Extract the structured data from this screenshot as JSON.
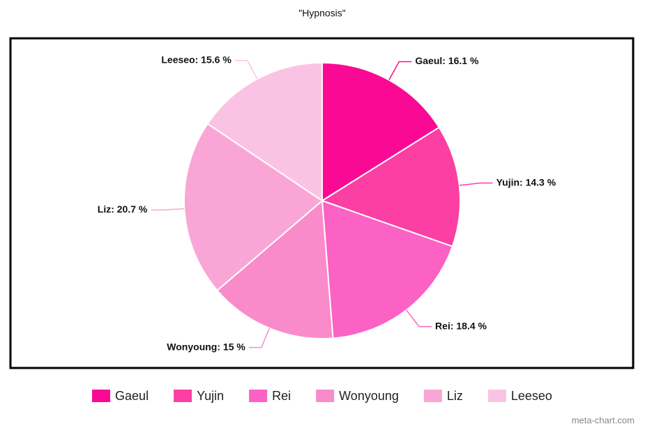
{
  "chart_data": {
    "type": "pie",
    "title": "\"Hypnosis\"",
    "categories": [
      "Gaeul",
      "Yujin",
      "Rei",
      "Wonyoung",
      "Liz",
      "Leeseo"
    ],
    "values": [
      16.1,
      14.3,
      18.4,
      15,
      20.7,
      15.6
    ],
    "value_labels": [
      "Gaeul: 16.1 %",
      "Yujin: 14.3 %",
      "Rei: 18.4 %",
      "Wonyoung: 15 %",
      "Liz: 20.7 %",
      "Leeseo: 15.6 %"
    ],
    "colors": [
      "#fa0a94",
      "#fb3fa3",
      "#fb62c4",
      "#f98bcb",
      "#f9a6d6",
      "#fbc3e3"
    ],
    "legend": "bottom",
    "watermark": "meta-chart.com"
  }
}
